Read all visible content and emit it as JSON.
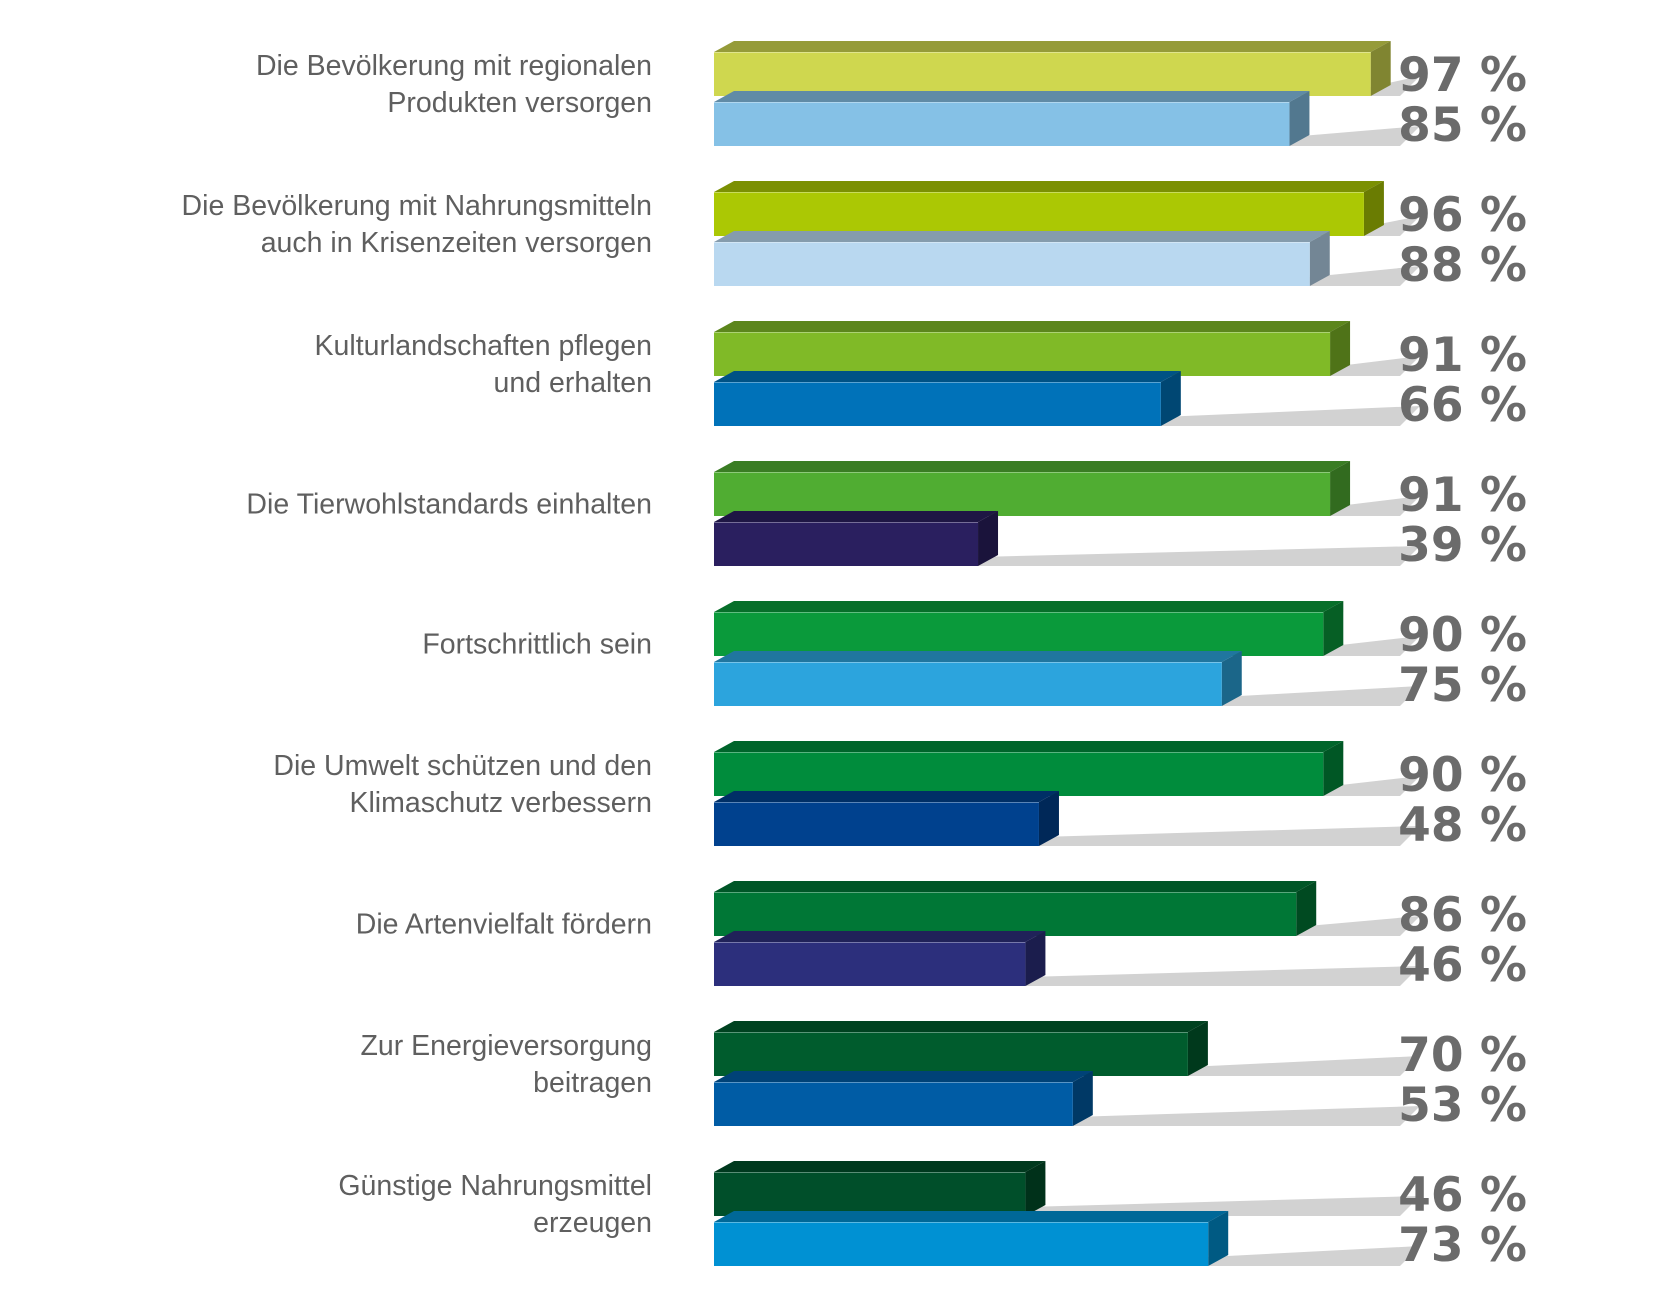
{
  "chart_data": {
    "type": "bar",
    "orientation": "horizontal",
    "style": "3d",
    "value_suffix": " %",
    "xlim": [
      0,
      100
    ],
    "grid": false,
    "categories": [
      [
        "Die Bevölkerung mit regionalen",
        "Produkten versorgen"
      ],
      [
        "Die Bevölkerung mit Nahrungsmitteln",
        "auch in Krisenzeiten versorgen"
      ],
      [
        "Kulturlandschaften pflegen",
        "und erhalten"
      ],
      [
        "Die Tierwohlstandards einhalten"
      ],
      [
        "Fortschrittlich sein"
      ],
      [
        "Die Umwelt schützen und den",
        "Klimaschutz verbessern"
      ],
      [
        "Die Artenvielfalt fördern"
      ],
      [
        "Zur Energieversorgung",
        "beitragen"
      ],
      [
        "Günstige Nahrungsmittel",
        "erzeugen"
      ]
    ],
    "series": [
      {
        "values": [
          97,
          96,
          91,
          91,
          90,
          90,
          86,
          70,
          46
        ],
        "colors": [
          "#cfd74f",
          "#abc804",
          "#80ba27",
          "#50ad32",
          "#0a9a3b",
          "#008c3c",
          "#007736",
          "#005c2d",
          "#004f2a"
        ]
      },
      {
        "values": [
          85,
          88,
          66,
          39,
          75,
          48,
          46,
          53,
          73
        ],
        "colors": [
          "#85c1e6",
          "#b9d8f0",
          "#0072b9",
          "#2a1f5f",
          "#2ca4dd",
          "#00418e",
          "#2c2f7c",
          "#005ca5",
          "#0091d3"
        ]
      }
    ],
    "track_color": "#d2d2d2",
    "label_color": "#5f5f5f",
    "value_color": "#6b6b6b"
  }
}
